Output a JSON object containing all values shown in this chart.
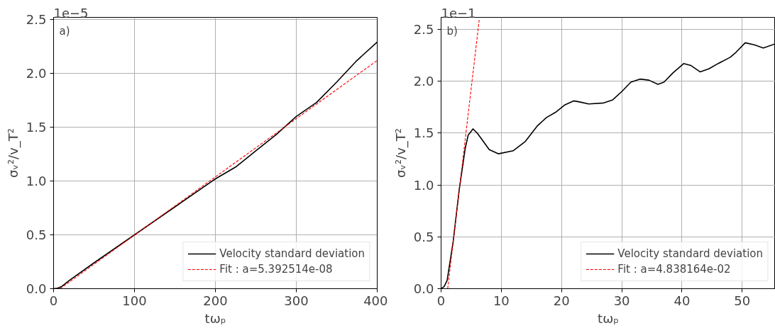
{
  "chart_data": [
    {
      "type": "line",
      "xlabel": "tωₚ",
      "ylabel": "σᵥ²/v_T²",
      "annotations": [
        "a)",
        "1e−5"
      ],
      "xlim": [
        0,
        400
      ],
      "xticks": [
        0,
        100,
        200,
        300,
        400
      ],
      "ylim": [
        0,
        2.52
      ],
      "yticks": [
        {
          "value": 0,
          "label": "0.0"
        },
        0.5,
        {
          "value": 1,
          "label": "1.0"
        },
        1.5,
        {
          "value": 2,
          "label": "2.0"
        },
        2.5
      ],
      "grid": true,
      "legend": "bottom right",
      "series": [
        {
          "name": "Velocity standard deviation",
          "color": "#000000",
          "line_style": "solid",
          "x": [
            0,
            5,
            10,
            20,
            50,
            100,
            150,
            200,
            225,
            250,
            275,
            300,
            325,
            350,
            375,
            400
          ],
          "values": [
            0,
            0.005,
            0.02,
            0.08,
            0.24,
            0.5,
            0.76,
            1.02,
            1.13,
            1.28,
            1.43,
            1.6,
            1.73,
            1.92,
            2.12,
            2.29
          ]
        },
        {
          "name": "Fit : a=5.392514e-08",
          "color": "#ff0000",
          "line_style": "dashed",
          "x": [
            8,
            400
          ],
          "values": [
            0,
            2.12
          ]
        }
      ]
    },
    {
      "type": "line",
      "xlabel": "tωₚ",
      "ylabel": "σᵥ²/v_T²",
      "annotations": [
        "b)",
        "1e−1"
      ],
      "xlim": [
        0,
        55.5
      ],
      "xticks": [
        0,
        10,
        20,
        30,
        40,
        50
      ],
      "ylim": [
        0,
        2.615
      ],
      "yticks": [
        {
          "value": 0,
          "label": "0.0"
        },
        0.5,
        {
          "value": 1,
          "label": "1.0"
        },
        1.5,
        {
          "value": 2,
          "label": "2.0"
        },
        2.5
      ],
      "grid": true,
      "legend": "bottom right",
      "series": [
        {
          "name": "Velocity standard deviation",
          "color": "#000000",
          "line_style": "solid",
          "x": [
            0,
            0.5,
            1,
            2,
            3,
            4,
            4.5,
            5.3,
            6,
            7,
            8,
            9.5,
            12,
            14,
            16,
            17.5,
            19,
            20.5,
            22,
            23,
            24.5,
            27,
            28.5,
            30,
            31.5,
            33,
            34.5,
            36,
            37,
            38.5,
            40.3,
            41.5,
            43,
            44.5,
            46,
            48,
            49,
            50.5,
            52,
            53.5,
            55.5
          ],
          "values": [
            0,
            0.02,
            0.08,
            0.45,
            0.95,
            1.35,
            1.48,
            1.54,
            1.5,
            1.42,
            1.34,
            1.3,
            1.33,
            1.42,
            1.57,
            1.65,
            1.7,
            1.77,
            1.81,
            1.8,
            1.78,
            1.79,
            1.82,
            1.9,
            1.99,
            2.02,
            2.01,
            1.97,
            1.99,
            2.08,
            2.17,
            2.15,
            2.09,
            2.12,
            2.17,
            2.23,
            2.28,
            2.37,
            2.35,
            2.32,
            2.36
          ]
        },
        {
          "name": "Fit : a=4.838164e-02",
          "color": "#ff0000",
          "line_style": "dashed",
          "x": [
            1.1,
            6.35
          ],
          "values": [
            0,
            2.6
          ]
        }
      ]
    }
  ]
}
